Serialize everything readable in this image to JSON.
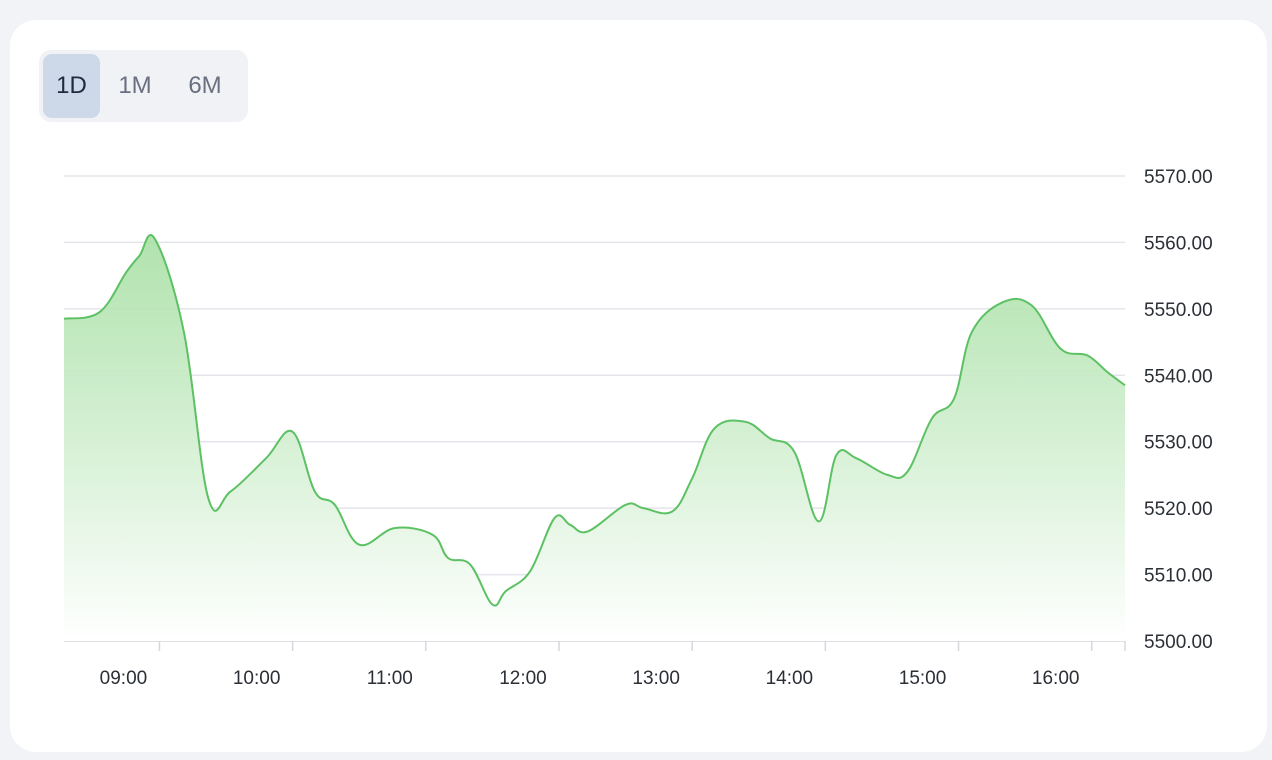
{
  "range_selector": {
    "options": [
      "1D",
      "1M",
      "6M"
    ],
    "selected": "1D"
  },
  "colors": {
    "line": "#5cc163",
    "fill_top": "#a8e0a5",
    "fill_bottom": "#ffffff",
    "grid": "#e3e5ea",
    "axis_text": "#2b2f36",
    "active_button": "#cdd9e8"
  },
  "chart_data": {
    "type": "area",
    "title": "",
    "xlabel": "",
    "ylabel": "",
    "ylim": [
      5500,
      5570
    ],
    "xlim": [
      "08:17",
      "16:15"
    ],
    "y_ticks": [
      "5500.00",
      "5510.00",
      "5520.00",
      "5530.00",
      "5540.00",
      "5550.00",
      "5560.00",
      "5570.00"
    ],
    "x_ticks": [
      "09:00",
      "10:00",
      "11:00",
      "12:00",
      "13:00",
      "14:00",
      "15:00",
      "16:00"
    ],
    "y_axis_position": "right",
    "grid": true,
    "legend": "none",
    "series": [
      {
        "x": [
          "08:17",
          "08:33",
          "08:45",
          "08:51",
          "08:58",
          "09:11",
          "09:22",
          "09:32",
          "09:48",
          "10:00",
          "10:10",
          "10:19",
          "10:30",
          "10:46",
          "11:03",
          "11:10",
          "11:20",
          "11:30",
          "11:36",
          "11:47",
          "11:58",
          "12:05",
          "12:13",
          "12:30",
          "12:38",
          "12:51",
          "13:00",
          "13:10",
          "13:24",
          "13:35",
          "13:46",
          "13:57",
          "14:05",
          "14:14",
          "14:28",
          "14:37",
          "14:48",
          "14:58",
          "15:06",
          "15:20",
          "15:33",
          "15:46",
          "15:58",
          "16:07",
          "16:15"
        ],
        "values": [
          5548.5,
          5549.5,
          5555.5,
          5558,
          5560.5,
          5546.5,
          5521.5,
          5522.5,
          5527.5,
          5531.5,
          5522.5,
          5520.5,
          5514.5,
          5517,
          5516,
          5512.5,
          5511.5,
          5505.5,
          5507.5,
          5510.5,
          5518.5,
          5517.5,
          5516.5,
          5520.5,
          5520,
          5519.5,
          5524.5,
          5532,
          5533,
          5530.5,
          5528.5,
          5518,
          5528,
          5527.5,
          5525,
          5525.5,
          5533.5,
          5536.5,
          5546.5,
          5551,
          5550.5,
          5544,
          5543,
          5540.5,
          5538.5
        ]
      }
    ]
  }
}
